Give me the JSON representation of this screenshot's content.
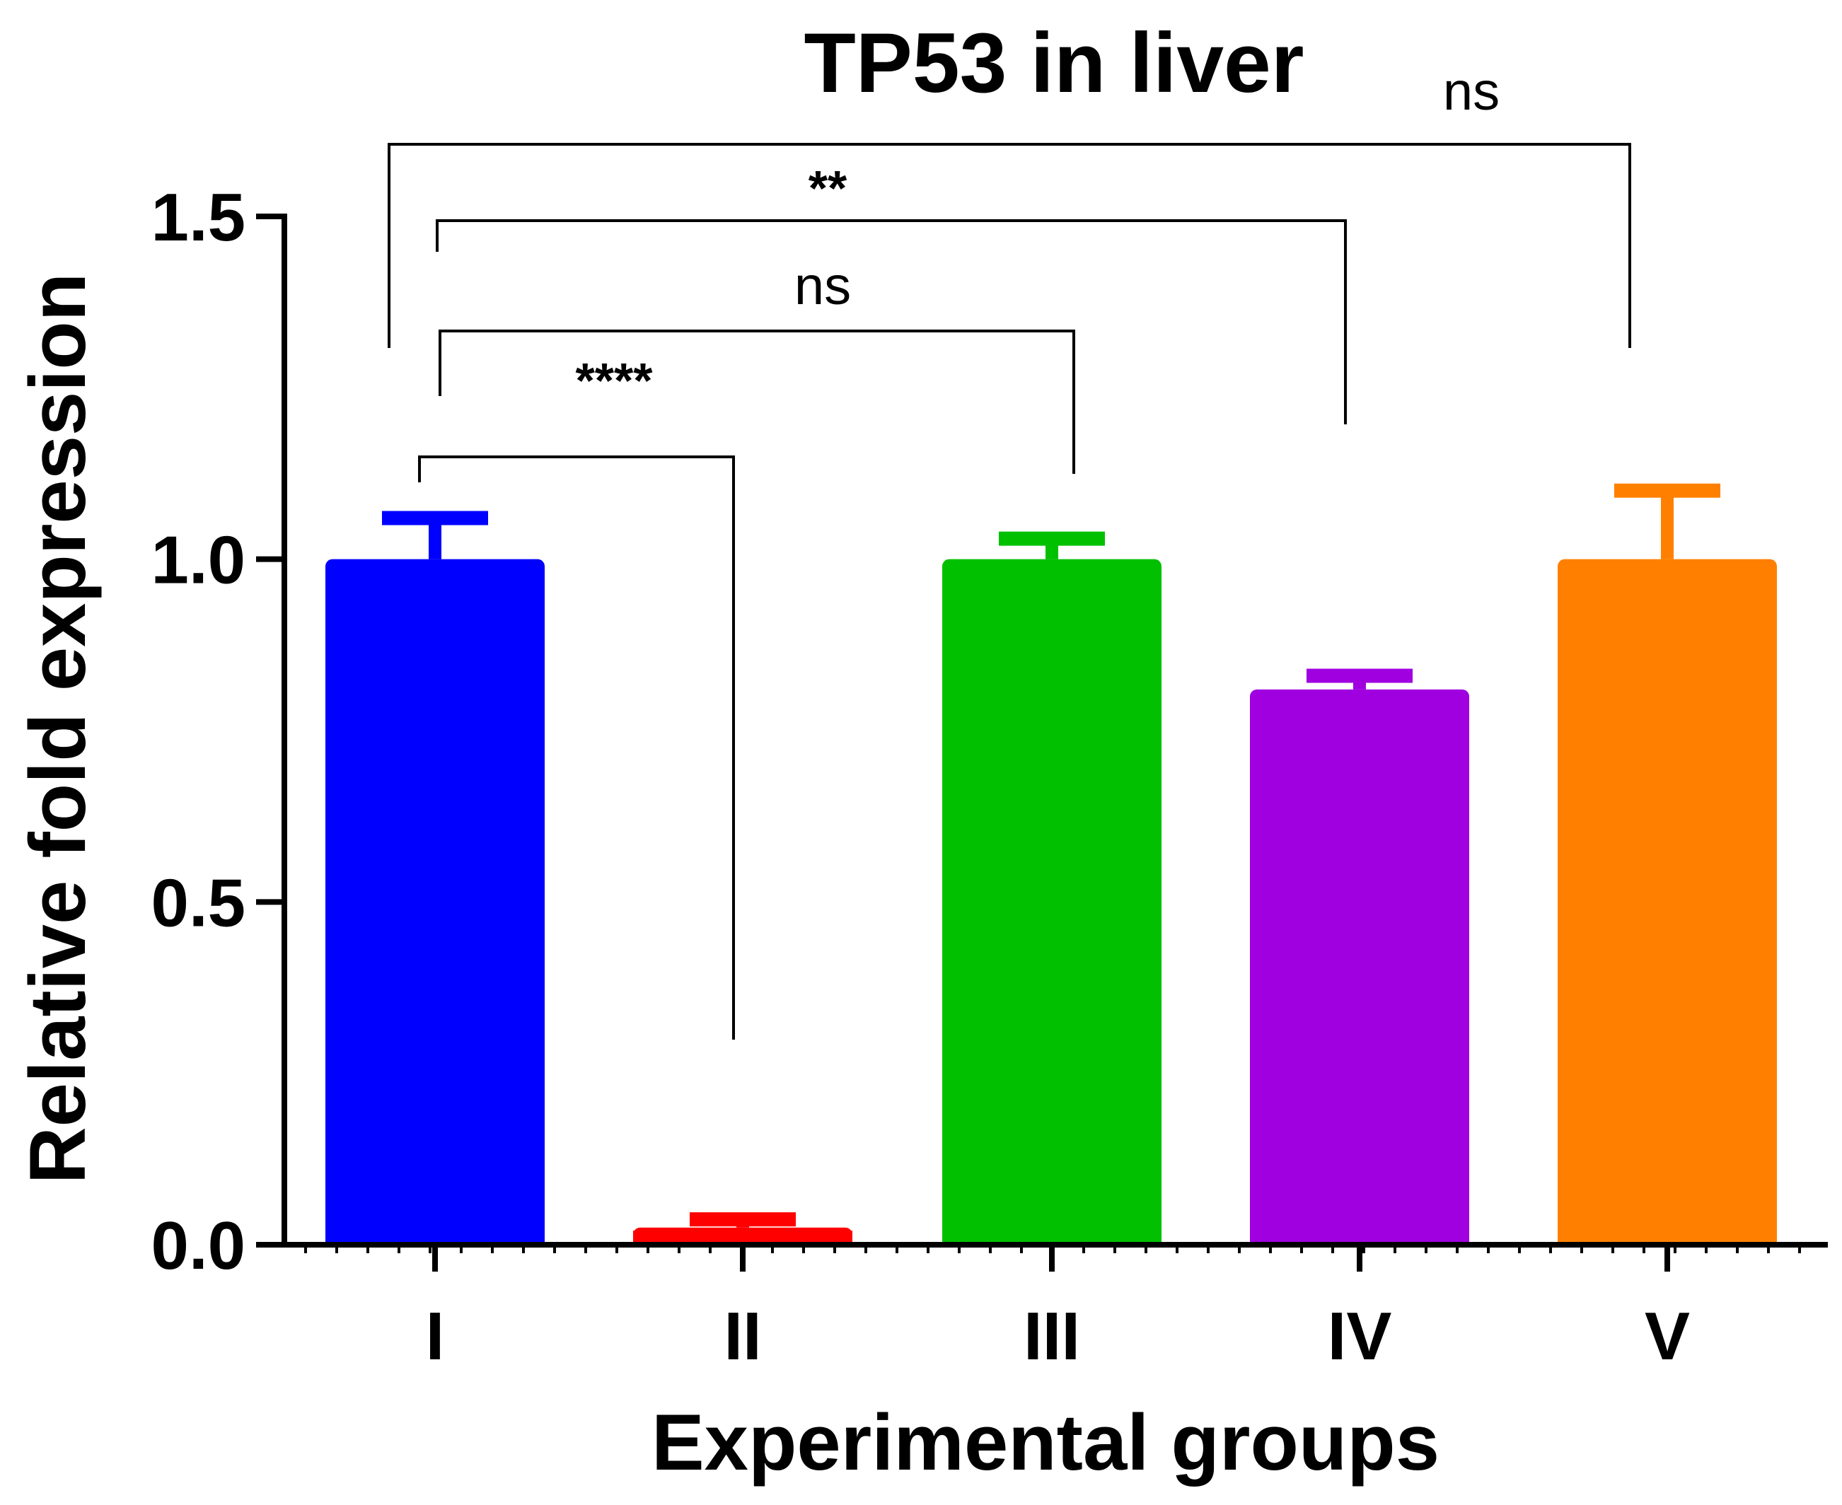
{
  "chart_data": {
    "type": "bar",
    "title": "TP53 in liver",
    "xlabel": "Experimental groups",
    "ylabel": "Relative fold expression",
    "categories": [
      "I",
      "II",
      "III",
      "IV",
      "V"
    ],
    "values": [
      1.0,
      0.025,
      1.0,
      0.81,
      1.0
    ],
    "errors": [
      0.06,
      0.012,
      0.03,
      0.02,
      0.1
    ],
    "colors": [
      "#0000ff",
      "#ff0000",
      "#00c000",
      "#a000e0",
      "#ff8000"
    ],
    "ylim": [
      0,
      1.5
    ],
    "yticks": [
      {
        "value": 0.0,
        "label": "0.0"
      },
      {
        "value": 0.5,
        "label": "0.5"
      },
      {
        "value": 1.0,
        "label": "1.0"
      },
      {
        "value": 1.5,
        "label": "1.5"
      }
    ],
    "grid": false,
    "significance": [
      {
        "from": "I",
        "to": "II",
        "label": "****"
      },
      {
        "from": "I",
        "to": "III",
        "label": "ns"
      },
      {
        "from": "I",
        "to": "IV",
        "label": "**"
      },
      {
        "from": "I",
        "to": "V",
        "label": "ns"
      }
    ]
  }
}
